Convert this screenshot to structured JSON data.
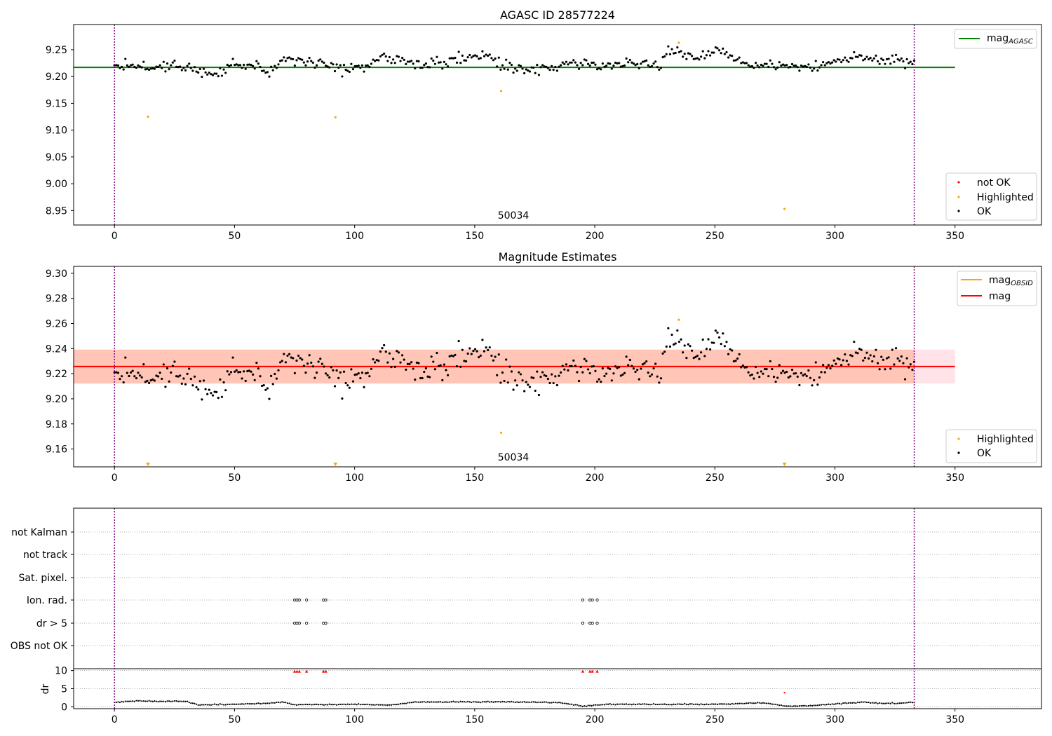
{
  "colors": {
    "ok": "#000000",
    "highlighted": "#ffa500",
    "not_ok": "#ff0000",
    "mag_agasc_line": "#008000",
    "mag_obsid_line": "#ffa500",
    "mag_line": "#ff0000",
    "band_pink": "#ffc0cb",
    "band_orange": "#ffa07a",
    "obsid_boundary": "#800080",
    "grid": "#b0b0b0"
  },
  "chart_data": [
    {
      "type": "scatter",
      "title": "AGASC ID 28577224",
      "annotation": "50034",
      "xlim": [
        -17,
        386
      ],
      "ylim": [
        8.923,
        9.297
      ],
      "xticks": [
        0,
        50,
        100,
        150,
        200,
        250,
        300,
        350
      ],
      "yticks": [
        8.95,
        9.0,
        9.05,
        9.1,
        9.15,
        9.2,
        9.25
      ],
      "ytick_labels": [
        "8.95",
        "9.00",
        "9.05",
        "9.10",
        "9.15",
        "9.20",
        "9.25"
      ],
      "vlines": [
        0,
        333
      ],
      "hlines": [
        {
          "name": "mag_AGASC",
          "y": 9.217,
          "x0": -17,
          "x1": 350
        }
      ],
      "legend_upper": [
        {
          "label_main": "mag",
          "label_sub": "AGASC",
          "kind": "line",
          "color": "#008000"
        }
      ],
      "legend_lower": [
        {
          "label": "not OK",
          "kind": "dot",
          "color": "#ff0000"
        },
        {
          "label": "Highlighted",
          "kind": "dot",
          "color": "#ffa500"
        },
        {
          "label": "OK",
          "kind": "dot",
          "color": "#000000"
        }
      ],
      "series": [
        {
          "name": "Highlighted",
          "points": [
            [
              14,
              9.125
            ],
            [
              92,
              9.124
            ],
            [
              161,
              9.173
            ],
            [
              235,
              9.263
            ],
            [
              279,
              8.953
            ]
          ]
        }
      ],
      "ok_series": {
        "name": "OK",
        "x_start": 0,
        "x_end": 333,
        "n": 440,
        "mean": 9.225
      },
      "ok_profile": [
        [
          0,
          9.224
        ],
        [
          15,
          9.219
        ],
        [
          30,
          9.222
        ],
        [
          35,
          9.205
        ],
        [
          45,
          9.208
        ],
        [
          50,
          9.222
        ],
        [
          60,
          9.216
        ],
        [
          66,
          9.209
        ],
        [
          70,
          9.232
        ],
        [
          80,
          9.228
        ],
        [
          90,
          9.222
        ],
        [
          95,
          9.212
        ],
        [
          105,
          9.218
        ],
        [
          110,
          9.238
        ],
        [
          120,
          9.229
        ],
        [
          130,
          9.222
        ],
        [
          140,
          9.229
        ],
        [
          150,
          9.241
        ],
        [
          160,
          9.225
        ],
        [
          165,
          9.215
        ],
        [
          175,
          9.214
        ],
        [
          185,
          9.22
        ],
        [
          190,
          9.227
        ],
        [
          200,
          9.222
        ],
        [
          210,
          9.222
        ],
        [
          220,
          9.224
        ],
        [
          226,
          9.218
        ],
        [
          230,
          9.248
        ],
        [
          240,
          9.24
        ],
        [
          245,
          9.236
        ],
        [
          250,
          9.247
        ],
        [
          256,
          9.243
        ],
        [
          262,
          9.225
        ],
        [
          270,
          9.222
        ],
        [
          280,
          9.218
        ],
        [
          290,
          9.216
        ],
        [
          300,
          9.228
        ],
        [
          310,
          9.238
        ],
        [
          320,
          9.232
        ],
        [
          333,
          9.225
        ]
      ]
    },
    {
      "type": "scatter",
      "title": "Magnitude Estimates",
      "annotation": "50034",
      "xlim": [
        -17,
        386
      ],
      "ylim": [
        9.1458,
        9.3055
      ],
      "xticks": [
        0,
        50,
        100,
        150,
        200,
        250,
        300,
        350
      ],
      "yticks": [
        9.16,
        9.18,
        9.2,
        9.22,
        9.24,
        9.26,
        9.28,
        9.3
      ],
      "ytick_labels": [
        "9.16",
        "9.18",
        "9.20",
        "9.22",
        "9.24",
        "9.26",
        "9.28",
        "9.30"
      ],
      "vlines": [
        0,
        333
      ],
      "bands": [
        {
          "y0": 9.2122,
          "y1": 9.2392,
          "x0": -17,
          "x1": 350,
          "color": "#ffc0cb",
          "opacity": 0.45
        },
        {
          "y0": 9.2122,
          "y1": 9.2392,
          "x0": -17,
          "x1": 333,
          "color": "#ffa07a",
          "opacity": 0.45
        }
      ],
      "hlines": [
        {
          "name": "mag_OBSID",
          "y": 9.2257,
          "x0": -17,
          "x1": 333,
          "color": "#ffa500"
        },
        {
          "name": "mag",
          "y": 9.2257,
          "x0": -17,
          "x1": 350,
          "color": "#ff0000"
        }
      ],
      "legend_upper": [
        {
          "label_main": "mag",
          "label_sub": "OBSID",
          "kind": "line",
          "color": "#ffa500"
        },
        {
          "label_main": "mag",
          "label_sub": "",
          "kind": "line",
          "color": "#ff0000"
        }
      ],
      "legend_lower": [
        {
          "label": "Highlighted",
          "kind": "dot",
          "color": "#ffa500"
        },
        {
          "label": "OK",
          "kind": "dot",
          "color": "#000000"
        }
      ],
      "series": [
        {
          "name": "Highlighted",
          "points": [
            [
              161,
              9.173
            ],
            [
              235,
              9.263
            ]
          ]
        }
      ],
      "clipped_markers": [
        14,
        92,
        279
      ],
      "ok_series": {
        "name": "OK",
        "x_start": 0,
        "x_end": 333,
        "n": 440,
        "mean": 9.225
      }
    },
    {
      "type": "scatter",
      "title": "",
      "xlim": [
        -17,
        386
      ],
      "xticks": [
        0,
        50,
        100,
        150,
        200,
        250,
        300,
        350
      ],
      "categories": [
        "not Kalman",
        "not track",
        "Sat. pixel.",
        "Ion. rad.",
        "dr > 5",
        "OBS not OK"
      ],
      "vlines": [
        0,
        333
      ],
      "flag_points": {
        "Ion. rad.": [
          75,
          76,
          77,
          80,
          87,
          88,
          195,
          198,
          199,
          201
        ],
        "dr > 5": [
          75,
          76,
          77,
          80,
          87,
          88,
          195,
          198,
          199,
          201
        ]
      },
      "dr": {
        "ylabel": "dr",
        "yticks": [
          0,
          5,
          10
        ],
        "ytick_labels": [
          "0",
          "5",
          "10"
        ],
        "ylim": [
          -0.5,
          10.5
        ],
        "clipped_x": [
          75,
          76,
          77,
          80,
          87,
          88,
          195,
          198,
          199,
          201
        ],
        "not_ok_points": [
          [
            279,
            3.9
          ]
        ],
        "profile": [
          [
            0,
            1.2
          ],
          [
            8,
            1.6
          ],
          [
            30,
            1.5
          ],
          [
            35,
            0.5
          ],
          [
            60,
            0.9
          ],
          [
            70,
            1.3
          ],
          [
            75,
            0.6
          ],
          [
            90,
            0.6
          ],
          [
            100,
            0.7
          ],
          [
            115,
            0.5
          ],
          [
            125,
            1.3
          ],
          [
            160,
            1.4
          ],
          [
            185,
            1.2
          ],
          [
            195,
            0.2
          ],
          [
            205,
            0.7
          ],
          [
            250,
            0.7
          ],
          [
            270,
            1.1
          ],
          [
            280,
            0.2
          ],
          [
            290,
            0.3
          ],
          [
            300,
            0.8
          ],
          [
            312,
            1.3
          ],
          [
            320,
            0.9
          ],
          [
            333,
            1.2
          ]
        ]
      }
    }
  ]
}
